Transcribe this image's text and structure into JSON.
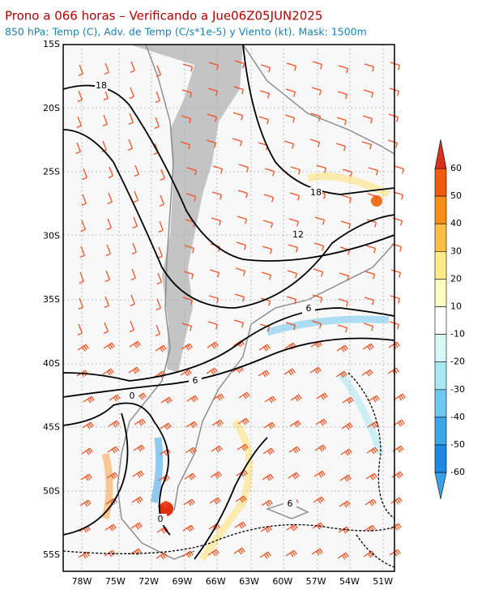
{
  "header": {
    "title": "Prono a 066 horas – Verificando a Jue06Z05JUN2025",
    "subtitle": "850 hPa: Temp (C), Adv. de Temp (C/s*1e-5) y Viento (kt). Mask: 1500m"
  },
  "axes": {
    "lat_labels": [
      "15S",
      "20S",
      "25S",
      "30S",
      "35S",
      "40S",
      "45S",
      "50S",
      "55S"
    ],
    "lon_labels": [
      "78W",
      "75W",
      "72W",
      "69W",
      "66W",
      "63W",
      "60W",
      "57W",
      "54W",
      "51W"
    ]
  },
  "colorbar": {
    "labels": [
      "60",
      "50",
      "40",
      "30",
      "20",
      "10",
      "-10",
      "-20",
      "-30",
      "-40",
      "-50",
      "-60"
    ]
  },
  "contour_labels": [
    "18",
    "18",
    "12",
    "6",
    "6",
    "0",
    "0",
    "6"
  ]
}
